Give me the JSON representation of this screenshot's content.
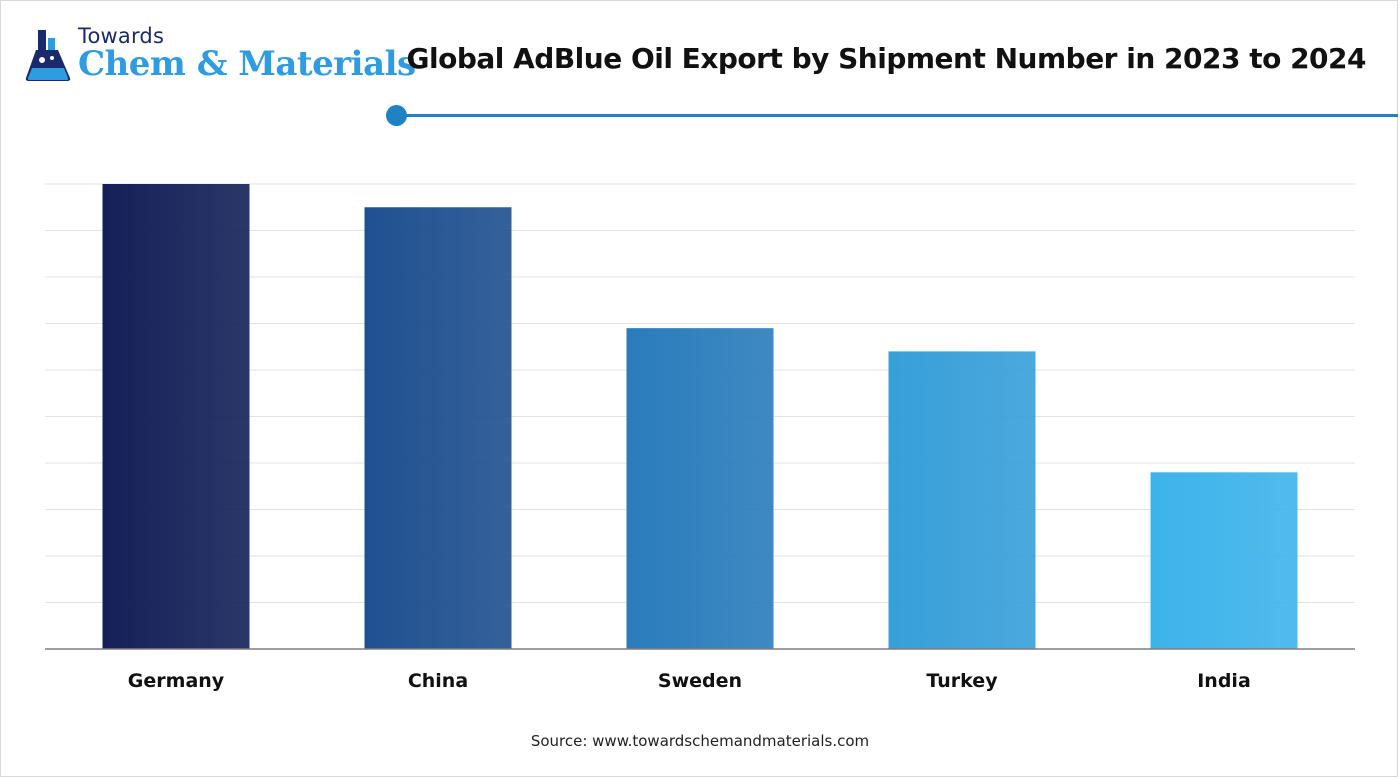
{
  "brand": {
    "line1": "Towards",
    "line2": "Chem & Materials"
  },
  "chart_data": {
    "type": "bar",
    "title": "Global AdBlue Oil Export by Shipment Number in 2023 to 2024",
    "categories": [
      "Germany",
      "China",
      "Sweden",
      "Turkey",
      "India"
    ],
    "values": [
      100,
      95,
      69,
      64,
      38
    ],
    "ylim": [
      0,
      100
    ],
    "grid": true,
    "xlabel": "",
    "ylabel": "",
    "colors": [
      "#142058",
      "#1f5090",
      "#2a7cbc",
      "#379fd9",
      "#3db3eb"
    ]
  },
  "source": "Source: www.towardschemandmaterials.com"
}
